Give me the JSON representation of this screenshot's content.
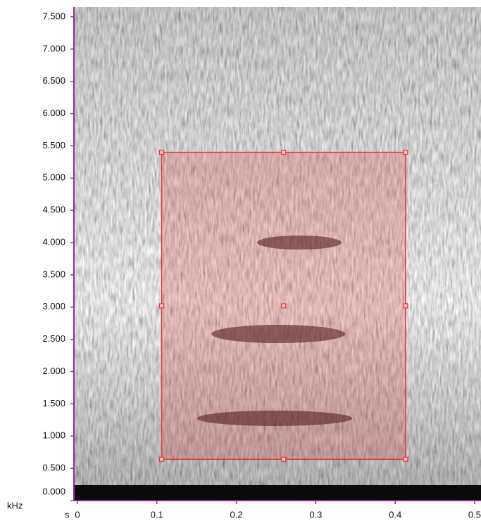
{
  "chart_data": {
    "type": "spectrogram",
    "x_label": "s",
    "y_label": "kHz",
    "xlim": [
      -0.0044,
      0.508
    ],
    "ylim": [
      0,
      7.652
    ],
    "xticks": [
      0,
      0.1,
      0.2,
      0.3,
      0.4,
      0.5
    ],
    "yticks": [
      {
        "value": 0,
        "label": "0.000"
      },
      {
        "value": 0.5,
        "label": "0.500"
      },
      {
        "value": 1,
        "label": "1.000"
      },
      {
        "value": 1.5,
        "label": "1.500"
      },
      {
        "value": 2,
        "label": "2.000"
      },
      {
        "value": 2.5,
        "label": "2.500"
      },
      {
        "value": 3,
        "label": "3.000"
      },
      {
        "value": 3.5,
        "label": "3.500"
      },
      {
        "value": 4,
        "label": "4.000"
      },
      {
        "value": 4.5,
        "label": "4.500"
      },
      {
        "value": 5,
        "label": "5.000"
      },
      {
        "value": 5.5,
        "label": "5.500"
      },
      {
        "value": 6,
        "label": "6.000"
      },
      {
        "value": 6.5,
        "label": "6.500"
      },
      {
        "value": 7,
        "label": "7.000"
      },
      {
        "value": 7.5,
        "label": "7.500"
      }
    ],
    "selection": {
      "x": [
        0.106,
        0.413
      ],
      "y": [
        0.64,
        5.4
      ],
      "color": "#e03a3a"
    },
    "axis_color": "#8a2f8f"
  }
}
